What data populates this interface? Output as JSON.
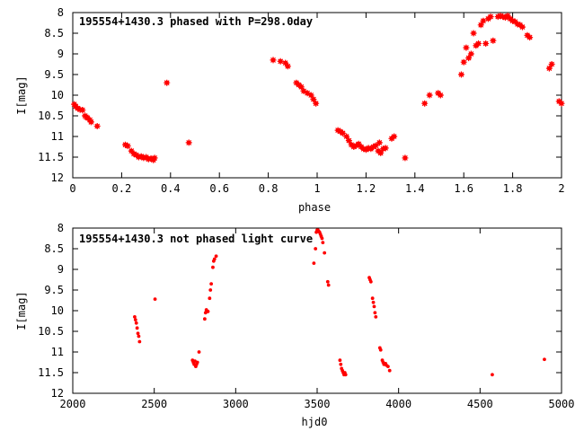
{
  "chart_data": [
    {
      "type": "scatter",
      "title": "195554+1430.3 phased with P=298.0day",
      "xlabel": "phase",
      "ylabel": "I[mag]",
      "xlim": [
        0,
        2
      ],
      "ylim": [
        8,
        12
      ],
      "y_inverted": true,
      "grid": false,
      "marker_color": "#ff0000",
      "marker": "star",
      "x_ticks": [
        "0",
        "0.2",
        "0.4",
        "0.6",
        "0.8",
        "1",
        "1.2",
        "1.4",
        "1.6",
        "1.8",
        "2"
      ],
      "y_ticks": [
        "8",
        "8.5",
        "9",
        "9.5",
        "10",
        "10.5",
        "11",
        "11.5",
        "12"
      ],
      "series": [
        {
          "points": [
            [
              0.006,
              10.22
            ],
            [
              0.012,
              10.27
            ],
            [
              0.02,
              10.32
            ],
            [
              0.03,
              10.35
            ],
            [
              0.04,
              10.36
            ],
            [
              0.05,
              10.5
            ],
            [
              0.055,
              10.53
            ],
            [
              0.06,
              10.55
            ],
            [
              0.07,
              10.6
            ],
            [
              0.075,
              10.65
            ],
            [
              0.1,
              10.75
            ],
            [
              0.215,
              11.2
            ],
            [
              0.225,
              11.23
            ],
            [
              0.24,
              11.35
            ],
            [
              0.25,
              11.42
            ],
            [
              0.26,
              11.45
            ],
            [
              0.27,
              11.5
            ],
            [
              0.28,
              11.48
            ],
            [
              0.29,
              11.52
            ],
            [
              0.3,
              11.5
            ],
            [
              0.31,
              11.55
            ],
            [
              0.32,
              11.53
            ],
            [
              0.33,
              11.57
            ],
            [
              0.335,
              11.52
            ],
            [
              0.385,
              9.7
            ],
            [
              0.475,
              11.15
            ],
            [
              0.82,
              9.15
            ],
            [
              0.85,
              9.18
            ],
            [
              0.87,
              9.22
            ],
            [
              0.88,
              9.3
            ],
            [
              0.915,
              9.7
            ],
            [
              0.925,
              9.75
            ],
            [
              0.935,
              9.8
            ],
            [
              0.945,
              9.9
            ],
            [
              0.96,
              9.95
            ],
            [
              0.975,
              10.0
            ],
            [
              0.985,
              10.1
            ],
            [
              0.995,
              10.2
            ],
            [
              1.085,
              10.85
            ],
            [
              1.095,
              10.88
            ],
            [
              1.105,
              10.92
            ],
            [
              1.12,
              11.0
            ],
            [
              1.13,
              11.1
            ],
            [
              1.14,
              11.2
            ],
            [
              1.15,
              11.25
            ],
            [
              1.16,
              11.22
            ],
            [
              1.17,
              11.18
            ],
            [
              1.18,
              11.25
            ],
            [
              1.19,
              11.3
            ],
            [
              1.2,
              11.32
            ],
            [
              1.21,
              11.28
            ],
            [
              1.22,
              11.3
            ],
            [
              1.23,
              11.25
            ],
            [
              1.24,
              11.22
            ],
            [
              1.25,
              11.35
            ],
            [
              1.255,
              11.15
            ],
            [
              1.26,
              11.4
            ],
            [
              1.27,
              11.3
            ],
            [
              1.28,
              11.28
            ],
            [
              1.305,
              11.05
            ],
            [
              1.315,
              11.0
            ],
            [
              1.36,
              11.52
            ],
            [
              1.44,
              10.2
            ],
            [
              1.46,
              10.0
            ],
            [
              1.495,
              9.95
            ],
            [
              1.505,
              10.0
            ],
            [
              1.59,
              9.5
            ],
            [
              1.6,
              9.2
            ],
            [
              1.61,
              8.85
            ],
            [
              1.62,
              9.1
            ],
            [
              1.63,
              9.0
            ],
            [
              1.64,
              8.5
            ],
            [
              1.65,
              8.8
            ],
            [
              1.66,
              8.75
            ],
            [
              1.67,
              8.3
            ],
            [
              1.68,
              8.2
            ],
            [
              1.69,
              8.75
            ],
            [
              1.7,
              8.15
            ],
            [
              1.71,
              8.1
            ],
            [
              1.72,
              8.68
            ],
            [
              1.74,
              8.1
            ],
            [
              1.75,
              8.08
            ],
            [
              1.76,
              8.1
            ],
            [
              1.77,
              8.12
            ],
            [
              1.78,
              8.08
            ],
            [
              1.79,
              8.15
            ],
            [
              1.8,
              8.2
            ],
            [
              1.81,
              8.22
            ],
            [
              1.82,
              8.28
            ],
            [
              1.83,
              8.3
            ],
            [
              1.84,
              8.35
            ],
            [
              1.86,
              8.55
            ],
            [
              1.87,
              8.6
            ],
            [
              1.95,
              9.35
            ],
            [
              1.96,
              9.25
            ],
            [
              1.99,
              10.15
            ],
            [
              2.0,
              10.2
            ]
          ]
        }
      ]
    },
    {
      "type": "scatter",
      "title": "195554+1430.3 not phased light curve",
      "xlabel": "hjd0",
      "ylabel": "I[mag]",
      "xlim": [
        2000,
        5000
      ],
      "ylim": [
        8,
        12
      ],
      "y_inverted": true,
      "grid": false,
      "marker_color": "#ff0000",
      "marker": "dot",
      "x_ticks": [
        "2000",
        "2500",
        "3000",
        "3500",
        "4000",
        "4500",
        "5000"
      ],
      "y_ticks": [
        "8",
        "8.5",
        "9",
        "9.5",
        "10",
        "10.5",
        "11",
        "11.5",
        "12"
      ],
      "series": [
        {
          "points": [
            [
              2380,
              10.15
            ],
            [
              2385,
              10.22
            ],
            [
              2390,
              10.3
            ],
            [
              2395,
              10.42
            ],
            [
              2400,
              10.55
            ],
            [
              2405,
              10.62
            ],
            [
              2410,
              10.75
            ],
            [
              2505,
              9.72
            ],
            [
              2735,
              11.2
            ],
            [
              2740,
              11.25
            ],
            [
              2745,
              11.3
            ],
            [
              2750,
              11.22
            ],
            [
              2755,
              11.35
            ],
            [
              2760,
              11.3
            ],
            [
              2765,
              11.25
            ],
            [
              2775,
              11.0
            ],
            [
              2810,
              10.2
            ],
            [
              2815,
              10.05
            ],
            [
              2820,
              9.98
            ],
            [
              2830,
              10.02
            ],
            [
              2840,
              9.7
            ],
            [
              2845,
              9.5
            ],
            [
              2850,
              9.35
            ],
            [
              2860,
              8.95
            ],
            [
              2865,
              8.8
            ],
            [
              2870,
              8.75
            ],
            [
              2880,
              8.68
            ],
            [
              3480,
              8.85
            ],
            [
              3490,
              8.5
            ],
            [
              3495,
              8.1
            ],
            [
              3500,
              8.05
            ],
            [
              3505,
              8.05
            ],
            [
              3510,
              8.08
            ],
            [
              3515,
              8.1
            ],
            [
              3520,
              8.15
            ],
            [
              3525,
              8.2
            ],
            [
              3530,
              8.25
            ],
            [
              3535,
              8.35
            ],
            [
              3545,
              8.6
            ],
            [
              3565,
              9.3
            ],
            [
              3570,
              9.38
            ],
            [
              3640,
              11.2
            ],
            [
              3645,
              11.3
            ],
            [
              3650,
              11.4
            ],
            [
              3655,
              11.45
            ],
            [
              3660,
              11.5
            ],
            [
              3665,
              11.55
            ],
            [
              3670,
              11.5
            ],
            [
              3675,
              11.55
            ],
            [
              3820,
              9.2
            ],
            [
              3825,
              9.25
            ],
            [
              3830,
              9.3
            ],
            [
              3840,
              9.7
            ],
            [
              3845,
              9.8
            ],
            [
              3850,
              9.9
            ],
            [
              3855,
              10.05
            ],
            [
              3860,
              10.15
            ],
            [
              3885,
              10.9
            ],
            [
              3890,
              10.95
            ],
            [
              3900,
              11.2
            ],
            [
              3905,
              11.25
            ],
            [
              3910,
              11.3
            ],
            [
              3920,
              11.28
            ],
            [
              3925,
              11.32
            ],
            [
              3935,
              11.35
            ],
            [
              3945,
              11.45
            ],
            [
              4575,
              11.55
            ],
            [
              4895,
              11.18
            ]
          ]
        }
      ]
    }
  ]
}
